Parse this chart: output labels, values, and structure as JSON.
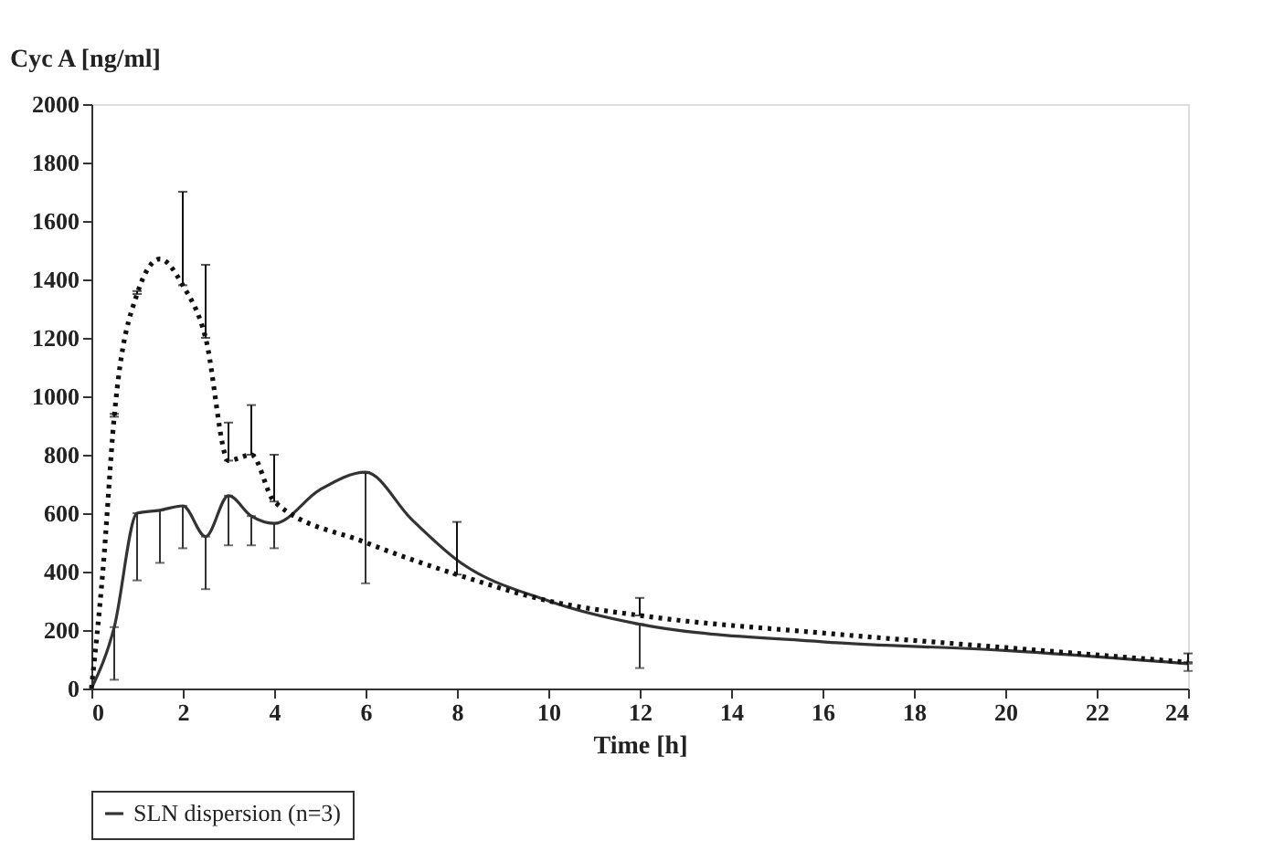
{
  "chart_data": {
    "type": "line",
    "ylabel": "Cyc A [ng/ml]",
    "xlabel": "Time [h]",
    "xlim": [
      0,
      24
    ],
    "xticks": [
      0,
      2,
      4,
      6,
      8,
      10,
      12,
      14,
      16,
      18,
      20,
      22,
      24
    ],
    "ylim": [
      0,
      2000
    ],
    "yticks": [
      0,
      200,
      400,
      600,
      800,
      1000,
      1200,
      1400,
      1600,
      1800,
      2000
    ],
    "grid": false,
    "legend": "bottom",
    "marker": "none",
    "series": [
      {
        "name": "SLN dispersion (n=3)",
        "color": "#333333",
        "line_style": "solid",
        "x": [
          0,
          0.5,
          1,
          1.5,
          2,
          2.5,
          3,
          3.5,
          4,
          5,
          6,
          7,
          8,
          10,
          12,
          16,
          20,
          24
        ],
        "values": [
          0,
          210,
          600,
          610,
          625,
          520,
          660,
          590,
          565,
          680,
          740,
          580,
          440,
          300,
          220,
          160,
          130,
          85
        ],
        "errors": [
          null,
          [
            30,
            210
          ],
          [
            370,
            600
          ],
          [
            430,
            610
          ],
          [
            480,
            625
          ],
          [
            340,
            520
          ],
          [
            490,
            660
          ],
          [
            490,
            590
          ],
          [
            480,
            565
          ],
          null,
          [
            360,
            740
          ],
          null,
          null,
          null,
          [
            70,
            220
          ],
          null,
          null,
          [
            60,
            85
          ]
        ]
      },
      {
        "color": "#111111",
        "line_style": "dotted",
        "x": [
          0,
          0.25,
          0.5,
          1,
          1.5,
          2,
          2.5,
          3,
          3.5,
          4,
          6,
          8,
          10,
          12,
          16,
          20,
          24
        ],
        "values": [
          0,
          400,
          930,
          1350,
          1470,
          1380,
          1200,
          780,
          800,
          640,
          500,
          390,
          300,
          250,
          190,
          140,
          90
        ],
        "errors": [
          null,
          null,
          [
            930,
            940
          ],
          [
            1350,
            1360
          ],
          null,
          [
            1380,
            1700
          ],
          [
            1200,
            1450
          ],
          [
            780,
            910
          ],
          [
            800,
            970
          ],
          [
            640,
            800
          ],
          null,
          [
            390,
            570
          ],
          null,
          [
            250,
            310
          ],
          null,
          null,
          [
            90,
            120
          ]
        ]
      }
    ]
  }
}
